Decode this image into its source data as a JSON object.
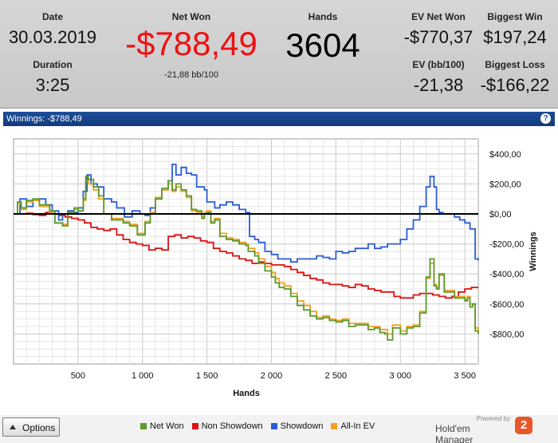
{
  "summary": {
    "date_label": "Date",
    "date_value": "30.03.2019",
    "duration_label": "Duration",
    "duration_value": "3:25",
    "net_won_label": "Net Won",
    "net_won_value": "-$788,49",
    "net_won_bb": "-21,88 bb/100",
    "hands_label": "Hands",
    "hands_value": "3604",
    "ev_net_won_label": "EV Net Won",
    "ev_net_won_value": "-$770,37",
    "ev_bb_label": "EV (bb/100)",
    "ev_bb_value": "-21,38",
    "biggest_win_label": "Biggest Win",
    "biggest_win_value": "$197,24",
    "biggest_loss_label": "Biggest Loss",
    "biggest_loss_value": "-$166,22",
    "net_won_color": "#ee1111"
  },
  "titlebar": {
    "title": "Winnings: -$788,49",
    "help_icon": "?"
  },
  "footer": {
    "options_label": "Options",
    "powered_by": "Powered by",
    "brand_name": "Hold'em Manager",
    "logo_mark": "2"
  },
  "chart_data": {
    "type": "line",
    "xlabel": "Hands",
    "ylabel": "Winnings",
    "xlim": [
      0,
      3604
    ],
    "ylim": [
      -1000,
      500
    ],
    "x_ticks": [
      500,
      1000,
      1500,
      2000,
      2500,
      3000,
      3500
    ],
    "x_tick_labels": [
      "500",
      "1 000",
      "1 500",
      "2 000",
      "2 500",
      "3 000",
      "3 500"
    ],
    "y_ticks": [
      400,
      200,
      0,
      -200,
      -400,
      -600,
      -800
    ],
    "y_tick_labels": [
      "$400,00",
      "$200,00",
      "$0,00",
      "-$200,00",
      "-$400,00",
      "-$600,00",
      "-$800,00"
    ],
    "grid": true,
    "legend_position": "bottom-center",
    "series": [
      {
        "name": "Net Won",
        "color": "#5a9a2e",
        "x": [
          0,
          30,
          60,
          100,
          150,
          200,
          280,
          320,
          380,
          420,
          470,
          500,
          540,
          560,
          580,
          620,
          660,
          700,
          760,
          800,
          850,
          900,
          960,
          1020,
          1060,
          1100,
          1150,
          1200,
          1230,
          1260,
          1300,
          1340,
          1380,
          1420,
          1460,
          1480,
          1500,
          1530,
          1560,
          1600,
          1650,
          1700,
          1750,
          1800,
          1820,
          1870,
          1900,
          1950,
          2000,
          2030,
          2060,
          2100,
          2150,
          2200,
          2250,
          2300,
          2350,
          2400,
          2450,
          2500,
          2550,
          2600,
          2650,
          2700,
          2750,
          2800,
          2840,
          2880,
          2900,
          2940,
          3000,
          3050,
          3100,
          3150,
          3200,
          3230,
          3260,
          3280,
          3300,
          3340,
          3380,
          3420,
          3460,
          3480,
          3500,
          3520,
          3540,
          3560,
          3580,
          3604
        ],
        "y": [
          0,
          80,
          40,
          90,
          100,
          60,
          20,
          -60,
          -80,
          10,
          40,
          20,
          100,
          250,
          230,
          180,
          120,
          0,
          -40,
          -40,
          -60,
          -80,
          -140,
          -60,
          0,
          100,
          170,
          220,
          160,
          200,
          160,
          120,
          30,
          20,
          -30,
          0,
          10,
          -60,
          -40,
          -150,
          -170,
          -180,
          -200,
          -210,
          -250,
          -280,
          -330,
          -380,
          -420,
          -460,
          -490,
          -500,
          -550,
          -610,
          -640,
          -680,
          -700,
          -690,
          -710,
          -720,
          -710,
          -750,
          -740,
          -740,
          -770,
          -760,
          -790,
          -800,
          -840,
          -760,
          -800,
          -760,
          -750,
          -660,
          -420,
          -300,
          -480,
          -500,
          -400,
          -520,
          -520,
          -560,
          -560,
          -560,
          -580,
          -560,
          -620,
          -600,
          -780,
          -800
        ]
      },
      {
        "name": "Non Showdown",
        "color": "#dd1111",
        "x": [
          0,
          50,
          100,
          150,
          200,
          250,
          300,
          350,
          400,
          450,
          500,
          550,
          600,
          650,
          700,
          750,
          800,
          850,
          900,
          950,
          1000,
          1050,
          1100,
          1150,
          1200,
          1250,
          1300,
          1350,
          1400,
          1450,
          1500,
          1550,
          1600,
          1650,
          1700,
          1750,
          1800,
          1850,
          1900,
          1950,
          2000,
          2050,
          2100,
          2150,
          2200,
          2250,
          2300,
          2350,
          2400,
          2450,
          2500,
          2550,
          2600,
          2650,
          2700,
          2750,
          2800,
          2850,
          2900,
          2950,
          3000,
          3050,
          3100,
          3150,
          3200,
          3250,
          3300,
          3350,
          3400,
          3450,
          3500,
          3550,
          3604
        ],
        "y": [
          0,
          0,
          5,
          -5,
          -10,
          10,
          0,
          -10,
          -20,
          -30,
          -40,
          -60,
          -90,
          -100,
          -110,
          -100,
          -140,
          -170,
          -190,
          -200,
          -210,
          -240,
          -230,
          -240,
          -150,
          -140,
          -160,
          -150,
          -160,
          -180,
          -190,
          -230,
          -250,
          -260,
          -280,
          -300,
          -310,
          -330,
          -320,
          -330,
          -340,
          -340,
          -350,
          -370,
          -390,
          -410,
          -430,
          -440,
          -460,
          -470,
          -470,
          -480,
          -490,
          -470,
          -480,
          -500,
          -510,
          -520,
          -520,
          -550,
          -560,
          -560,
          -540,
          -530,
          -530,
          -540,
          -550,
          -560,
          -550,
          -520,
          -500,
          -490,
          -490
        ]
      },
      {
        "name": "Showdown",
        "color": "#2a5cd6",
        "x": [
          0,
          50,
          100,
          150,
          200,
          250,
          300,
          350,
          380,
          420,
          470,
          500,
          540,
          570,
          600,
          650,
          700,
          760,
          800,
          860,
          920,
          980,
          1020,
          1060,
          1100,
          1150,
          1200,
          1230,
          1260,
          1300,
          1340,
          1380,
          1420,
          1480,
          1500,
          1560,
          1600,
          1650,
          1700,
          1750,
          1800,
          1830,
          1870,
          1900,
          1950,
          2000,
          2050,
          2100,
          2150,
          2200,
          2250,
          2300,
          2350,
          2400,
          2450,
          2500,
          2550,
          2600,
          2650,
          2700,
          2750,
          2800,
          2850,
          2900,
          2950,
          3000,
          3050,
          3100,
          3150,
          3200,
          3230,
          3260,
          3280,
          3300,
          3330,
          3380,
          3420,
          3460,
          3500,
          3540,
          3580,
          3604
        ],
        "y": [
          0,
          100,
          50,
          90,
          100,
          60,
          20,
          -40,
          0,
          20,
          10,
          40,
          150,
          260,
          200,
          180,
          100,
          80,
          40,
          -20,
          20,
          0,
          -10,
          40,
          100,
          160,
          220,
          330,
          260,
          310,
          270,
          260,
          180,
          160,
          80,
          40,
          60,
          80,
          60,
          30,
          10,
          -150,
          -170,
          -190,
          -250,
          -270,
          -300,
          -300,
          -320,
          -300,
          -300,
          -300,
          -280,
          -290,
          -300,
          -250,
          -260,
          -250,
          -230,
          -230,
          -200,
          -230,
          -220,
          -200,
          -200,
          -170,
          -100,
          -40,
          50,
          180,
          250,
          180,
          30,
          10,
          0,
          0,
          -20,
          -40,
          -60,
          -100,
          -300,
          -310
        ]
      },
      {
        "name": "All-In EV",
        "color": "#f5a020",
        "x": [
          0,
          30,
          60,
          100,
          150,
          200,
          280,
          320,
          380,
          420,
          470,
          500,
          540,
          560,
          580,
          620,
          660,
          700,
          760,
          800,
          850,
          900,
          960,
          1020,
          1060,
          1100,
          1150,
          1200,
          1230,
          1260,
          1300,
          1340,
          1380,
          1420,
          1460,
          1480,
          1500,
          1530,
          1560,
          1600,
          1650,
          1700,
          1750,
          1800,
          1820,
          1870,
          1900,
          1950,
          2000,
          2030,
          2060,
          2100,
          2150,
          2200,
          2250,
          2300,
          2350,
          2400,
          2450,
          2500,
          2550,
          2600,
          2650,
          2700,
          2750,
          2800,
          2840,
          2880,
          2900,
          2940,
          3000,
          3050,
          3100,
          3150,
          3200,
          3230,
          3260,
          3280,
          3300,
          3340,
          3380,
          3420,
          3460,
          3480,
          3500,
          3520,
          3540,
          3560,
          3580,
          3604
        ],
        "y": [
          0,
          70,
          30,
          80,
          90,
          50,
          10,
          -60,
          -70,
          10,
          30,
          20,
          90,
          220,
          200,
          160,
          100,
          0,
          -30,
          -30,
          -50,
          -70,
          -130,
          -50,
          10,
          110,
          160,
          200,
          150,
          180,
          150,
          110,
          20,
          10,
          -20,
          10,
          20,
          -50,
          -30,
          -130,
          -160,
          -170,
          -190,
          -200,
          -230,
          -260,
          -300,
          -350,
          -390,
          -430,
          -460,
          -480,
          -530,
          -580,
          -610,
          -650,
          -690,
          -680,
          -700,
          -710,
          -700,
          -730,
          -730,
          -730,
          -750,
          -750,
          -770,
          -770,
          -800,
          -740,
          -780,
          -750,
          -740,
          -650,
          -430,
          -330,
          -470,
          -490,
          -410,
          -510,
          -510,
          -550,
          -550,
          -550,
          -570,
          -550,
          -600,
          -600,
          -760,
          -780
        ]
      }
    ]
  }
}
